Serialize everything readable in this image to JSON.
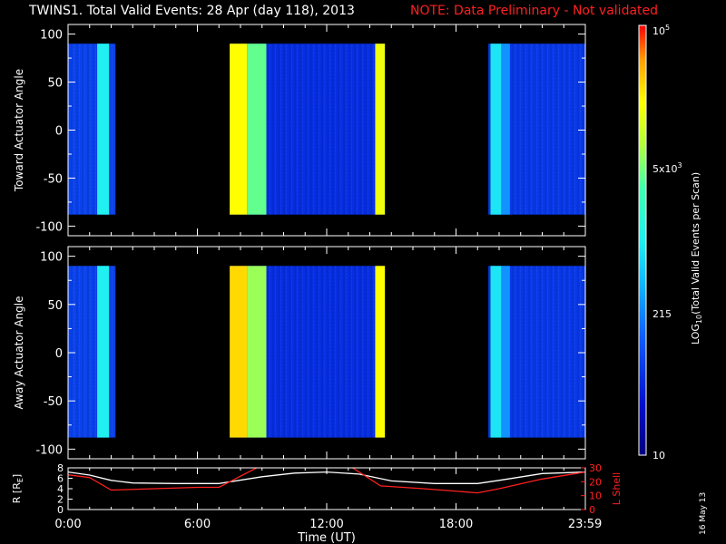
{
  "title": {
    "left": "TWINS1. Total Valid Events: 28 Apr (day 118), 2013",
    "right": "NOTE: Data Preliminary - Not validated"
  },
  "datestamp": "16 May 13",
  "colors": {
    "title_note": "#ff2020",
    "r_line": "#ffffff",
    "lshell_line": "#ff2020",
    "background": "#000000"
  },
  "colorbar": {
    "label_main": "LOG",
    "label_sub": "10",
    "label_rest": "(Total Valid Events per Scan)",
    "tick_labels": {
      "t10": "10",
      "t215": "215",
      "t5e3_base": "5x10",
      "t5e3_exp": "3",
      "t1e5_base": "10",
      "t1e5_exp": "5"
    },
    "min": 10,
    "max": 100000
  },
  "chart_data": [
    {
      "type": "heatmap",
      "ylabel": "Toward Actuator Angle",
      "ylim": [
        -110,
        110
      ],
      "yticks": [
        100,
        50,
        0,
        -50,
        -100
      ],
      "data_ylim": [
        -88,
        90
      ],
      "blocks": [
        {
          "t_start": 0.0,
          "t_end": 2.2,
          "level": 0.22,
          "bands": [
            {
              "t0": 1.35,
              "t1": 1.9,
              "level": 0.5
            }
          ]
        },
        {
          "t_start": 7.5,
          "t_end": 14.7,
          "level": 0.18,
          "bands": [
            {
              "t0": 7.5,
              "t1": 8.3,
              "level": 0.82
            },
            {
              "t0": 8.3,
              "t1": 9.2,
              "level": 0.65
            },
            {
              "t0": 14.25,
              "t1": 14.7,
              "level": 0.8
            }
          ]
        },
        {
          "t_start": 19.5,
          "t_end": 24.0,
          "level": 0.2,
          "bands": [
            {
              "t0": 19.6,
              "t1": 20.1,
              "level": 0.48
            },
            {
              "t0": 20.1,
              "t1": 20.5,
              "level": 0.35
            }
          ]
        }
      ]
    },
    {
      "type": "heatmap",
      "ylabel": "Away Actuator Angle",
      "ylim": [
        -110,
        110
      ],
      "yticks": [
        100,
        50,
        0,
        -50,
        -100
      ],
      "data_ylim": [
        -88,
        90
      ],
      "blocks": [
        {
          "t_start": 0.0,
          "t_end": 2.2,
          "level": 0.22,
          "bands": [
            {
              "t0": 1.35,
              "t1": 1.9,
              "level": 0.5
            }
          ]
        },
        {
          "t_start": 7.5,
          "t_end": 14.7,
          "level": 0.18,
          "bands": [
            {
              "t0": 7.5,
              "t1": 8.3,
              "level": 0.86
            },
            {
              "t0": 8.3,
              "t1": 9.2,
              "level": 0.7
            },
            {
              "t0": 14.25,
              "t1": 14.7,
              "level": 0.82
            }
          ]
        },
        {
          "t_start": 19.5,
          "t_end": 24.0,
          "level": 0.2,
          "bands": [
            {
              "t0": 19.6,
              "t1": 20.1,
              "level": 0.48
            },
            {
              "t0": 20.1,
              "t1": 20.5,
              "level": 0.35
            }
          ]
        }
      ]
    },
    {
      "type": "line",
      "ylabel": "R [R",
      "ylabel_sub": "E",
      "ylabel_end": "]",
      "ylim": [
        0,
        8
      ],
      "yticks": [
        0,
        2,
        4,
        6,
        8
      ],
      "ylabel_right": "L Shell",
      "ylim_right": [
        0,
        30
      ],
      "yticks_right": [
        0,
        10,
        20,
        30
      ],
      "xlabel": "Time (UT)",
      "xlim": [
        0,
        24
      ],
      "xticks": [
        0,
        6,
        12,
        18,
        23.983
      ],
      "xtick_labels": [
        "0:00",
        "6:00",
        "12:00",
        "18:00",
        "23:59"
      ],
      "series": [
        {
          "axis": "left",
          "x": [
            0,
            1,
            2,
            3,
            5,
            7,
            9,
            10.5,
            12,
            13.5,
            15,
            17,
            19,
            20,
            22,
            24
          ],
          "values": [
            7.2,
            6.6,
            5.6,
            5.1,
            5.0,
            5.0,
            6.3,
            7.0,
            7.2,
            6.8,
            5.5,
            5.0,
            5.0,
            5.6,
            6.9,
            7.2
          ]
        },
        {
          "axis": "right",
          "x": [
            0,
            1,
            2,
            6,
            7,
            8,
            9,
            13,
            14.5,
            16.5,
            19,
            20,
            22,
            24
          ],
          "values": [
            25,
            23,
            14,
            16,
            16,
            24,
            32,
            32,
            17,
            15,
            12,
            15,
            22,
            27
          ]
        }
      ]
    }
  ]
}
